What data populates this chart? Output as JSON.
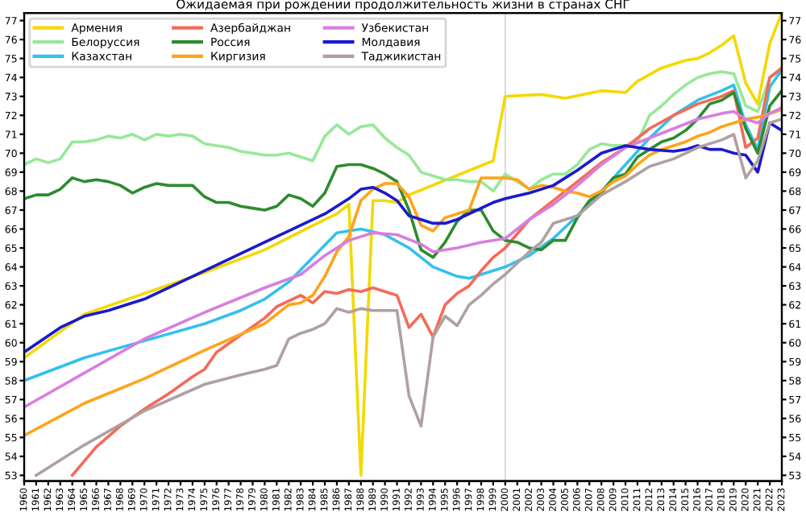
{
  "chart_data": {
    "type": "line",
    "title": "Ожидаемая при рождении продолжительность жизни в странах СНГ",
    "xlim": [
      1960,
      2023
    ],
    "xticks": [
      1960,
      1961,
      1962,
      1963,
      1964,
      1965,
      1966,
      1967,
      1968,
      1969,
      1970,
      1971,
      1972,
      1973,
      1974,
      1975,
      1976,
      1977,
      1978,
      1979,
      1980,
      1981,
      1982,
      1983,
      1984,
      1985,
      1986,
      1987,
      1988,
      1989,
      1990,
      1991,
      1992,
      1993,
      1994,
      1995,
      1996,
      1997,
      1998,
      1999,
      2000,
      2001,
      2002,
      2003,
      2004,
      2005,
      2006,
      2007,
      2008,
      2009,
      2010,
      2011,
      2012,
      2013,
      2014,
      2015,
      2016,
      2017,
      2018,
      2019,
      2020,
      2021,
      2022,
      2023
    ],
    "ylim": [
      52.7,
      77.4
    ],
    "yticks": [
      53,
      54,
      55,
      56,
      57,
      58,
      59,
      60,
      61,
      62,
      63,
      64,
      65,
      66,
      67,
      68,
      69,
      70,
      71,
      72,
      73,
      74,
      75,
      76,
      77
    ],
    "y2lim": [
      52.7,
      77.4
    ],
    "y2ticks": [
      53,
      54,
      55,
      56,
      57,
      58,
      59,
      60,
      61,
      62,
      63,
      64,
      65,
      66,
      67,
      68,
      69,
      70,
      71,
      72,
      73,
      74,
      75,
      76,
      77
    ],
    "grid": false,
    "legend": "top left",
    "marker": "none",
    "line_style": "solid",
    "ref_lines": [
      {
        "axis": "x",
        "value": 2000,
        "label": null,
        "color": "#dddddd"
      }
    ],
    "series": [
      {
        "name": "Армения",
        "color": "#f5d800",
        "x": [
          1960,
          1965,
          1970,
          1975,
          1980,
          1985,
          1986,
          1987,
          1988,
          1989,
          1990,
          1991,
          1992,
          1999,
          2000,
          2003,
          2005,
          2008,
          2010,
          2011,
          2013,
          2015,
          2016,
          2017,
          2018,
          2019,
          2020,
          2021,
          2022,
          2023
        ],
        "values": [
          59.2,
          61.5,
          62.6,
          63.7,
          64.9,
          66.5,
          66.8,
          67.3,
          53.0,
          67.5,
          67.5,
          67.4,
          67.8,
          69.6,
          73.0,
          73.1,
          72.9,
          73.3,
          73.2,
          73.8,
          74.5,
          74.9,
          75.0,
          75.3,
          75.7,
          76.2,
          73.7,
          72.6,
          75.8,
          77.4
        ]
      },
      {
        "name": "Белоруссия",
        "color": "#98e898",
        "x": [
          1960,
          1961,
          1962,
          1963,
          1964,
          1965,
          1966,
          1967,
          1968,
          1969,
          1970,
          1971,
          1972,
          1973,
          1974,
          1975,
          1976,
          1977,
          1978,
          1979,
          1980,
          1981,
          1982,
          1983,
          1984,
          1985,
          1986,
          1987,
          1988,
          1989,
          1990,
          1991,
          1992,
          1993,
          1994,
          1995,
          1996,
          1997,
          1998,
          1999,
          2000,
          2001,
          2002,
          2003,
          2004,
          2005,
          2006,
          2007,
          2008,
          2009,
          2010,
          2011,
          2012,
          2013,
          2014,
          2015,
          2016,
          2017,
          2018,
          2019,
          2020,
          2021,
          2022,
          2023
        ],
        "values": [
          69.4,
          69.7,
          69.5,
          69.7,
          70.6,
          70.6,
          70.7,
          70.9,
          70.8,
          71.0,
          70.7,
          71.0,
          70.9,
          71.0,
          70.9,
          70.5,
          70.4,
          70.3,
          70.1,
          70.0,
          69.9,
          69.9,
          70.0,
          69.8,
          69.6,
          70.9,
          71.5,
          71.0,
          71.4,
          71.5,
          70.8,
          70.3,
          69.9,
          69.0,
          68.8,
          68.6,
          68.6,
          68.5,
          68.5,
          68.0,
          68.9,
          68.5,
          68.1,
          68.6,
          68.9,
          68.9,
          69.4,
          70.2,
          70.5,
          70.4,
          70.4,
          70.6,
          72.0,
          72.5,
          73.1,
          73.6,
          74.0,
          74.2,
          74.3,
          74.2,
          72.5,
          72.2,
          74.0,
          74.4
        ]
      },
      {
        "name": "Казахстан",
        "color": "#33c0ee",
        "x": [
          1960,
          1965,
          1970,
          1975,
          1978,
          1980,
          1982,
          1984,
          1986,
          1988,
          1990,
          1992,
          1994,
          1996,
          1997,
          1998,
          2000,
          2002,
          2004,
          2006,
          2008,
          2010,
          2012,
          2014,
          2016,
          2018,
          2019,
          2020,
          2021,
          2022,
          2023
        ],
        "values": [
          58.0,
          59.2,
          60.1,
          61.0,
          61.7,
          62.3,
          63.2,
          64.5,
          65.8,
          66.0,
          65.7,
          65.0,
          64.0,
          63.5,
          63.4,
          63.6,
          64.0,
          64.6,
          65.5,
          66.7,
          68.0,
          69.4,
          70.8,
          72.0,
          72.8,
          73.3,
          73.6,
          71.5,
          70.2,
          73.5,
          74.4
        ]
      },
      {
        "name": "Азербайджан",
        "color": "#f46a5a",
        "x": [
          1964,
          1966,
          1968,
          1970,
          1972,
          1974,
          1975,
          1976,
          1978,
          1980,
          1981,
          1982,
          1983,
          1984,
          1985,
          1986,
          1987,
          1988,
          1989,
          1990,
          1991,
          1992,
          1993,
          1994,
          1995,
          1996,
          1997,
          1998,
          1999,
          2000,
          2002,
          2004,
          2006,
          2008,
          2010,
          2012,
          2014,
          2016,
          2018,
          2019,
          2020,
          2021,
          2022,
          2023
        ],
        "values": [
          53.0,
          54.5,
          55.6,
          56.5,
          57.3,
          58.2,
          58.6,
          59.5,
          60.4,
          61.3,
          61.9,
          62.2,
          62.5,
          62.1,
          62.7,
          62.6,
          62.8,
          62.7,
          62.9,
          62.7,
          62.5,
          60.8,
          61.5,
          60.3,
          62.0,
          62.6,
          63.0,
          63.8,
          64.5,
          65.0,
          66.5,
          67.5,
          68.5,
          69.5,
          70.3,
          71.3,
          72.0,
          72.6,
          73.0,
          73.3,
          70.3,
          70.8,
          74.0,
          74.5
        ]
      },
      {
        "name": "Россия",
        "color": "#2e8b2e",
        "x": [
          1960,
          1961,
          1962,
          1963,
          1964,
          1965,
          1966,
          1967,
          1968,
          1969,
          1970,
          1971,
          1972,
          1973,
          1974,
          1975,
          1976,
          1977,
          1978,
          1979,
          1980,
          1981,
          1982,
          1983,
          1984,
          1985,
          1986,
          1987,
          1988,
          1989,
          1990,
          1991,
          1992,
          1993,
          1994,
          1995,
          1996,
          1997,
          1998,
          1999,
          2000,
          2001,
          2002,
          2003,
          2004,
          2005,
          2006,
          2007,
          2008,
          2009,
          2010,
          2011,
          2012,
          2013,
          2014,
          2015,
          2016,
          2017,
          2018,
          2019,
          2020,
          2021,
          2022,
          2023
        ],
        "values": [
          67.6,
          67.8,
          67.8,
          68.1,
          68.7,
          68.5,
          68.6,
          68.5,
          68.3,
          67.9,
          68.2,
          68.4,
          68.3,
          68.3,
          68.3,
          67.7,
          67.4,
          67.4,
          67.2,
          67.1,
          67.0,
          67.2,
          67.8,
          67.6,
          67.2,
          67.9,
          69.3,
          69.4,
          69.4,
          69.2,
          68.9,
          68.5,
          67.0,
          64.9,
          64.5,
          65.3,
          66.4,
          67.0,
          67.0,
          65.9,
          65.4,
          65.3,
          65.0,
          64.9,
          65.4,
          65.4,
          66.6,
          67.5,
          67.9,
          68.7,
          68.9,
          69.8,
          70.2,
          70.6,
          70.8,
          71.2,
          71.8,
          72.6,
          72.8,
          73.2,
          71.3,
          70.0,
          72.5,
          73.3
        ]
      },
      {
        "name": "Киргизия",
        "color": "#ffa31a",
        "x": [
          1960,
          1965,
          1970,
          1975,
          1980,
          1982,
          1983,
          1984,
          1985,
          1986,
          1987,
          1988,
          1989,
          1990,
          1991,
          1992,
          1993,
          1994,
          1995,
          1996,
          1997,
          1998,
          1999,
          2000,
          2001,
          2002,
          2003,
          2004,
          2005,
          2006,
          2007,
          2008,
          2009,
          2010,
          2011,
          2012,
          2013,
          2014,
          2015,
          2016,
          2017,
          2018,
          2019,
          2020,
          2021,
          2022,
          2023
        ],
        "values": [
          55.1,
          56.8,
          58.1,
          59.6,
          61.0,
          62.0,
          62.1,
          62.5,
          63.5,
          64.8,
          65.6,
          67.5,
          68.1,
          68.4,
          68.4,
          67.7,
          66.2,
          65.9,
          66.6,
          66.8,
          67.0,
          68.7,
          68.7,
          68.7,
          68.6,
          68.1,
          68.3,
          68.2,
          68.0,
          67.9,
          67.7,
          68.0,
          68.5,
          68.8,
          69.4,
          69.9,
          70.2,
          70.4,
          70.6,
          70.9,
          71.1,
          71.4,
          71.6,
          71.8,
          71.9,
          72.1,
          72.3
        ]
      },
      {
        "name": "Узбекистан",
        "color": "#d87ee0",
        "x": [
          1960,
          1965,
          1970,
          1975,
          1980,
          1983,
          1985,
          1987,
          1989,
          1991,
          1993,
          1994,
          1996,
          1998,
          2000,
          2002,
          2004,
          2006,
          2008,
          2010,
          2012,
          2014,
          2016,
          2018,
          2019,
          2020,
          2021,
          2022,
          2023
        ],
        "values": [
          56.6,
          58.4,
          60.2,
          61.6,
          62.9,
          63.6,
          64.6,
          65.4,
          65.8,
          65.7,
          65.2,
          64.8,
          65.0,
          65.3,
          65.5,
          66.5,
          67.3,
          68.3,
          69.4,
          70.3,
          70.8,
          71.3,
          71.8,
          72.1,
          72.2,
          71.8,
          71.6,
          72.1,
          72.4
        ]
      },
      {
        "name": "Молдавия",
        "color": "#1a1acd",
        "x": [
          1960,
          1963,
          1965,
          1967,
          1970,
          1975,
          1980,
          1982,
          1985,
          1987,
          1988,
          1989,
          1990,
          1991,
          1992,
          1993,
          1994,
          1995,
          1996,
          1997,
          1998,
          1999,
          2000,
          2002,
          2004,
          2006,
          2008,
          2010,
          2012,
          2014,
          2015,
          2016,
          2017,
          2018,
          2019,
          2020,
          2021,
          2022,
          2023
        ],
        "values": [
          59.5,
          60.8,
          61.4,
          61.7,
          62.3,
          63.8,
          65.3,
          65.9,
          66.8,
          67.6,
          68.1,
          68.2,
          67.9,
          67.5,
          66.7,
          66.5,
          66.3,
          66.3,
          66.5,
          66.8,
          67.1,
          67.4,
          67.6,
          67.9,
          68.3,
          69.1,
          70.0,
          70.4,
          70.2,
          70.1,
          70.2,
          70.4,
          70.2,
          70.2,
          70.0,
          69.9,
          69.0,
          71.6,
          71.2
        ]
      },
      {
        "name": "Таджикистан",
        "color": "#b0a0a0",
        "x": [
          1961,
          1965,
          1970,
          1975,
          1978,
          1980,
          1981,
          1982,
          1983,
          1984,
          1985,
          1986,
          1987,
          1988,
          1989,
          1990,
          1991,
          1992,
          1993,
          1994,
          1995,
          1996,
          1997,
          1998,
          1999,
          2000,
          2002,
          2003,
          2004,
          2006,
          2008,
          2010,
          2012,
          2014,
          2016,
          2018,
          2019,
          2020,
          2021,
          2022,
          2023
        ],
        "values": [
          53.0,
          54.6,
          56.4,
          57.8,
          58.3,
          58.6,
          58.8,
          60.2,
          60.5,
          60.7,
          61.0,
          61.8,
          61.6,
          61.8,
          61.7,
          61.7,
          61.7,
          57.2,
          55.6,
          60.3,
          61.4,
          60.9,
          62.0,
          62.5,
          63.1,
          63.6,
          64.8,
          65.3,
          66.3,
          66.7,
          67.8,
          68.5,
          69.3,
          69.7,
          70.3,
          70.7,
          71.0,
          68.7,
          69.6,
          71.6,
          71.8
        ]
      }
    ]
  }
}
